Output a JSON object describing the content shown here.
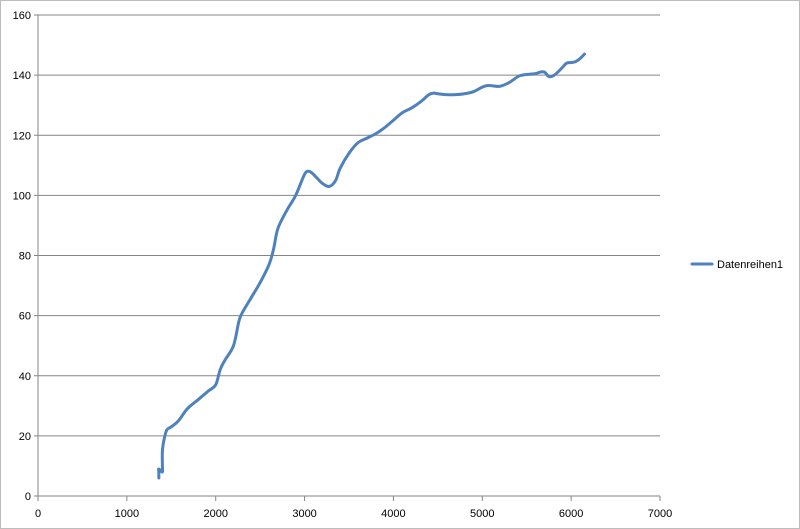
{
  "chart_data": {
    "type": "line",
    "title": "",
    "xlabel": "",
    "ylabel": "",
    "xlim": [
      0,
      7000
    ],
    "ylim": [
      0,
      160
    ],
    "x_ticks": [
      0,
      1000,
      2000,
      3000,
      4000,
      5000,
      6000,
      7000
    ],
    "y_ticks": [
      0,
      20,
      40,
      60,
      80,
      100,
      120,
      140,
      160
    ],
    "grid": "horizontal",
    "legend_position": "right",
    "series": [
      {
        "name": "Datenreihen1",
        "color": "#4F81BD",
        "x": [
          1360,
          1360,
          1360,
          1400,
          1400,
          1400,
          1420,
          1450,
          1500,
          1580,
          1680,
          1800,
          1920,
          2000,
          2050,
          2100,
          2200,
          2260,
          2300,
          2400,
          2500,
          2600,
          2650,
          2700,
          2800,
          2900,
          3000,
          3050,
          3100,
          3200,
          3280,
          3350,
          3400,
          3500,
          3600,
          3700,
          3800,
          3900,
          4000,
          4100,
          4200,
          4300,
          4400,
          4450,
          4500,
          4600,
          4700,
          4800,
          4900,
          5000,
          5050,
          5100,
          5200,
          5300,
          5400,
          5450,
          5500,
          5600,
          5650,
          5700,
          5750,
          5800,
          5850,
          5900,
          5950,
          6000,
          6050,
          6100,
          6150
        ],
        "y": [
          6,
          8,
          9,
          8,
          10,
          15,
          19,
          22,
          23,
          25,
          29,
          32,
          35,
          37,
          42,
          45,
          50,
          58,
          61,
          66,
          71,
          77,
          82,
          89,
          95,
          100,
          107,
          108,
          107,
          104,
          103,
          105,
          109,
          114,
          117.5,
          119,
          120.5,
          122.5,
          125,
          127.5,
          129,
          131,
          133.5,
          134,
          133.8,
          133.5,
          133.5,
          133.8,
          134.5,
          136,
          136.5,
          136.5,
          136.3,
          137.5,
          139.5,
          140,
          140.2,
          140.5,
          141,
          141,
          139.5,
          139.8,
          141,
          142.5,
          144,
          144.2,
          144.5,
          145.5,
          147
        ]
      }
    ]
  }
}
